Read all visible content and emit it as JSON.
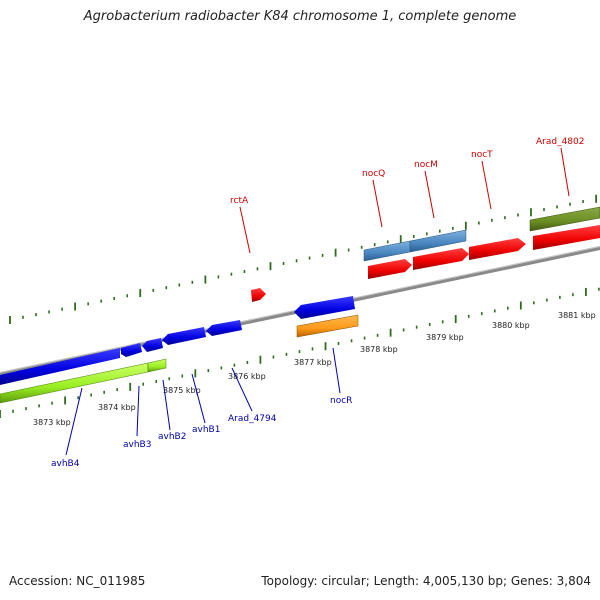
{
  "title": "Agrobacterium radiobacter K84 chromosome 1, complete genome",
  "footer": {
    "accession": "Accession: NC_011985",
    "summary": "Topology: circular; Length: 4,005,130 bp; Genes: 3,804"
  },
  "colors": {
    "backbone": "#8a8a8a",
    "forward_label": "#cc0000",
    "reverse_label": "#0000aa",
    "ticks": "#2f6b1f"
  },
  "scale_labels": [
    "3873 kbp",
    "3874 kbp",
    "3875 kbp",
    "3876 kbp",
    "3877 kbp",
    "3878 kbp",
    "3879 kbp",
    "3880 kbp",
    "3881 kbp"
  ],
  "genes": [
    {
      "name": "avhB4",
      "strand": "reverse",
      "color": "#0000ee"
    },
    {
      "name": "avhB3",
      "strand": "reverse",
      "color": "#0000ee"
    },
    {
      "name": "avhB2",
      "strand": "reverse",
      "color": "#0000ee"
    },
    {
      "name": "avhB1",
      "strand": "reverse",
      "color": "#0000ee"
    },
    {
      "name": "Arad_4794",
      "strand": "reverse",
      "color": "#0000ee"
    },
    {
      "name": "nocR",
      "strand": "reverse",
      "color": "#0000ee"
    },
    {
      "name": "rctA",
      "strand": "forward",
      "color": "#ee0000"
    },
    {
      "name": "nocQ",
      "strand": "forward",
      "color": "#ee0000"
    },
    {
      "name": "nocM",
      "strand": "forward",
      "color": "#ee0000"
    },
    {
      "name": "nocT",
      "strand": "forward",
      "color": "#ee0000"
    },
    {
      "name": "Arad_4802",
      "strand": "forward",
      "color": "#ee0000"
    }
  ]
}
